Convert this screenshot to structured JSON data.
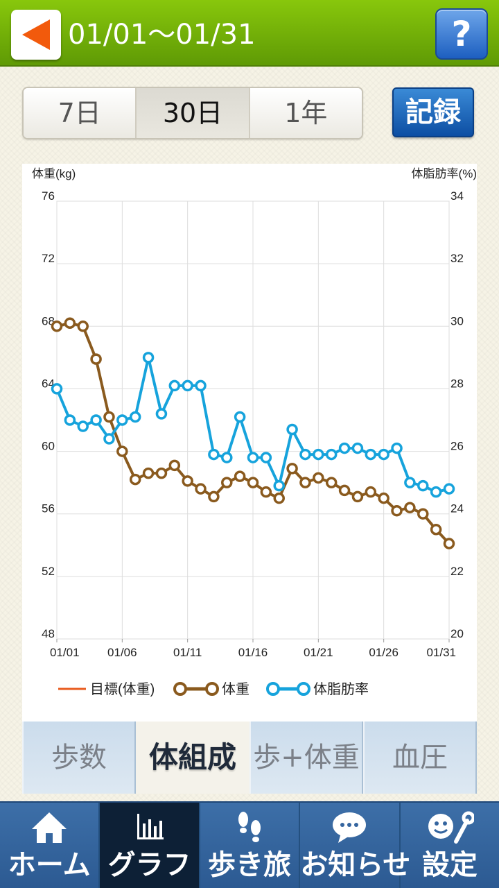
{
  "header": {
    "title": "01/01〜01/31",
    "back_icon": "back-arrow-icon",
    "help_label": "?"
  },
  "period": {
    "options": [
      "7日",
      "30日",
      "1年"
    ],
    "selected": "30日"
  },
  "record_button": "記録",
  "chart": {
    "left_axis_label": "体重(kg)",
    "right_axis_label": "体脂肪率(%)",
    "left_ticks": [
      "76",
      "72",
      "68",
      "64",
      "60",
      "56",
      "52",
      "48"
    ],
    "right_ticks": [
      "34",
      "32",
      "30",
      "28",
      "26",
      "24",
      "22",
      "20"
    ],
    "x_ticks": [
      "01/01",
      "01/06",
      "01/11",
      "01/16",
      "01/21",
      "01/26",
      "01/31"
    ],
    "legend": {
      "target": "目標(体重)",
      "weight": "体重",
      "bodyfat": "体脂肪率"
    }
  },
  "chart_data": {
    "type": "line",
    "x": [
      "01/01",
      "01/02",
      "01/03",
      "01/04",
      "01/05",
      "01/06",
      "01/07",
      "01/08",
      "01/09",
      "01/10",
      "01/11",
      "01/12",
      "01/13",
      "01/14",
      "01/15",
      "01/16",
      "01/17",
      "01/18",
      "01/19",
      "01/20",
      "01/21",
      "01/22",
      "01/23",
      "01/24",
      "01/25",
      "01/26",
      "01/27",
      "01/28",
      "01/29",
      "01/30",
      "01/31"
    ],
    "series": [
      {
        "name": "体重",
        "axis": "left",
        "color": "#8a5a1e",
        "values": [
          68.0,
          68.2,
          68.0,
          65.9,
          62.2,
          60.0,
          58.2,
          58.6,
          58.6,
          59.1,
          58.1,
          57.6,
          57.1,
          58.0,
          58.4,
          58.0,
          57.4,
          57.0,
          58.9,
          58.0,
          58.3,
          58.0,
          57.5,
          57.1,
          57.4,
          57.0,
          56.2,
          56.4,
          56.0,
          55.0,
          54.1
        ]
      },
      {
        "name": "体脂肪率",
        "axis": "right",
        "color": "#16a3dc",
        "values": [
          28.0,
          27.0,
          26.8,
          27.0,
          26.4,
          27.0,
          27.1,
          29.0,
          27.2,
          28.1,
          28.1,
          28.1,
          25.9,
          25.8,
          27.1,
          25.8,
          25.8,
          24.9,
          26.7,
          25.9,
          25.9,
          25.9,
          26.1,
          26.1,
          25.9,
          25.9,
          26.1,
          25.0,
          24.9,
          24.7,
          24.8
        ]
      }
    ],
    "target_series": {
      "name": "目標(体重)",
      "color": "#e85a1c",
      "values": []
    },
    "ylim_left": [
      48,
      76
    ],
    "ylim_right": [
      20,
      34
    ],
    "ylabel_left": "体重(kg)",
    "ylabel_right": "体脂肪率(%)",
    "grid": true,
    "legend_position": "bottom"
  },
  "tabs": {
    "items": [
      "歩数",
      "体組成",
      "歩+体重",
      "血圧"
    ],
    "selected": "体組成"
  },
  "bottom_nav": {
    "items": [
      {
        "label": "ホーム",
        "icon": "home-icon"
      },
      {
        "label": "グラフ",
        "icon": "bar-chart-icon"
      },
      {
        "label": "歩き旅",
        "icon": "footprints-icon"
      },
      {
        "label": "お知らせ",
        "icon": "speech-bubble-icon"
      },
      {
        "label": "設定",
        "icon": "settings-face-wrench-icon"
      }
    ],
    "selected": "グラフ"
  },
  "colors": {
    "header_green": "#6fae09",
    "weight_brown": "#8a5a1e",
    "bodyfat_blue": "#16a3dc",
    "target_orange": "#e85a1c",
    "nav_blue": "#35659f",
    "nav_active": "#0d2036"
  }
}
